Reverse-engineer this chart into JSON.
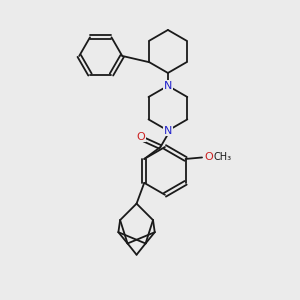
{
  "bg_color": "#ebebeb",
  "bond_color": "#1a1a1a",
  "n_color": "#2222cc",
  "o_color": "#cc2222",
  "bond_width": 1.3,
  "figsize": [
    3.0,
    3.0
  ],
  "dpi": 100,
  "xlim": [
    0,
    10
  ],
  "ylim": [
    0,
    10
  ]
}
